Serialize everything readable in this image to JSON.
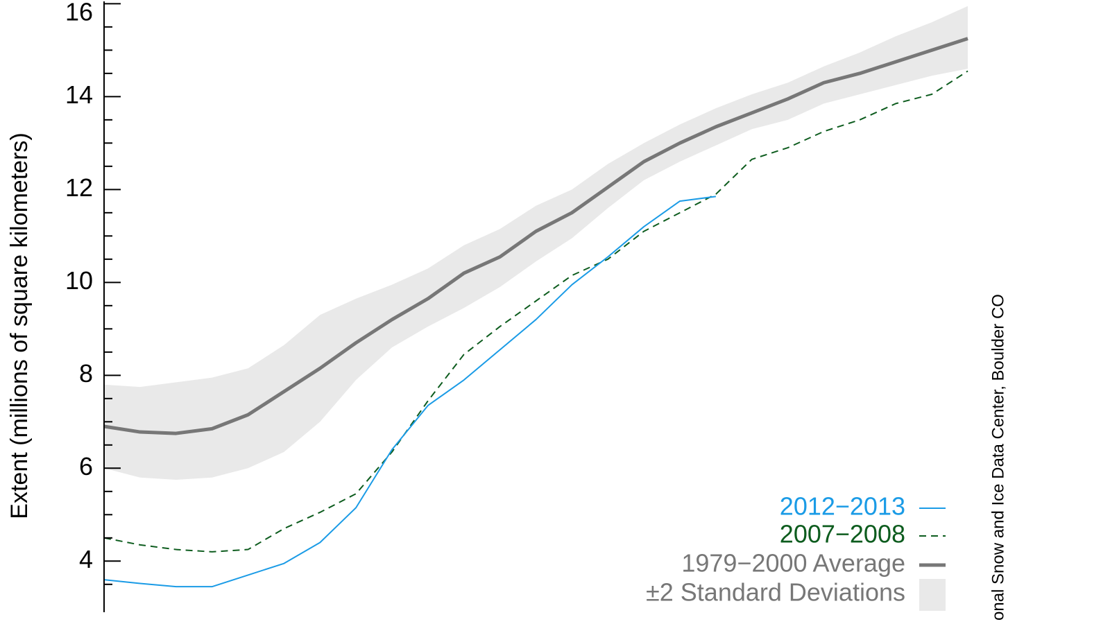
{
  "chart_data": {
    "type": "line",
    "y_label": "Extent (millions of square kilometers)",
    "credit": "onal Snow and Ice Data Center, Boulder CO",
    "categories": [
      null,
      null,
      null,
      null,
      null,
      null,
      null,
      null,
      null,
      null,
      null,
      null,
      null,
      null,
      null,
      null,
      null,
      null,
      null,
      null,
      null,
      null,
      null,
      null,
      null
    ],
    "ylim": [
      2.9,
      16.05
    ],
    "yticks": [
      4,
      6,
      8,
      10,
      12,
      14,
      16
    ],
    "yticks_minor": [
      3.5,
      4.5,
      5,
      5.5,
      6.5,
      7,
      7.5,
      8.5,
      9,
      9.5,
      10.5,
      11,
      11.5,
      12.5,
      13,
      13.5,
      14.5,
      15,
      15.5
    ],
    "band": {
      "name": "±2 Standard Deviations",
      "color": "#e9e9e9",
      "upper": [
        7.8,
        7.75,
        7.85,
        7.95,
        8.15,
        8.65,
        9.3,
        9.65,
        9.95,
        10.3,
        10.8,
        11.15,
        11.65,
        12.0,
        12.55,
        13.0,
        13.4,
        13.75,
        14.05,
        14.3,
        14.65,
        14.95,
        15.3,
        15.6,
        15.95
      ],
      "lower": [
        6.0,
        5.8,
        5.75,
        5.8,
        6.0,
        6.35,
        7.0,
        7.9,
        8.6,
        9.05,
        9.45,
        9.9,
        10.45,
        10.95,
        11.6,
        12.2,
        12.6,
        12.95,
        13.3,
        13.5,
        13.85,
        14.05,
        14.25,
        14.45,
        14.6
      ]
    },
    "series": [
      {
        "name": "2012−2013",
        "color": "#1a9be6",
        "width": 2,
        "dashed": false,
        "values": [
          3.6,
          3.52,
          3.45,
          3.45,
          3.7,
          3.95,
          4.4,
          5.15,
          6.4,
          7.35,
          7.9,
          8.55,
          9.2,
          9.95,
          10.55,
          11.2,
          11.75,
          11.85,
          null,
          null,
          null,
          null,
          null,
          null,
          null
        ]
      },
      {
        "name": "2007−2008",
        "color": "#0d5c1e",
        "width": 2,
        "dashed": true,
        "values": [
          4.5,
          4.35,
          4.25,
          4.2,
          4.25,
          4.7,
          5.05,
          5.45,
          6.35,
          7.45,
          8.45,
          9.05,
          9.6,
          10.15,
          10.5,
          11.1,
          11.5,
          11.9,
          12.65,
          12.9,
          13.25,
          13.5,
          13.85,
          14.05,
          14.55
        ]
      },
      {
        "name": "1979−2000 Average",
        "color": "#777777",
        "width": 5,
        "dashed": false,
        "values": [
          6.9,
          6.78,
          6.75,
          6.85,
          7.15,
          7.65,
          8.15,
          8.7,
          9.2,
          9.65,
          10.2,
          10.55,
          11.1,
          11.5,
          12.05,
          12.6,
          13.0,
          13.35,
          13.65,
          13.95,
          14.3,
          14.5,
          14.75,
          15.0,
          15.25
        ]
      }
    ]
  }
}
